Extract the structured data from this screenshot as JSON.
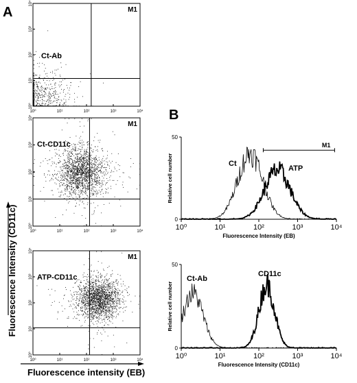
{
  "chart_data": [
    {
      "id": "scatter_ct_ab",
      "type": "scatter",
      "panel": "A",
      "title": "Ct-Ab",
      "gate_label": "M1",
      "x_ticks": [
        "10⁰",
        "10¹",
        "10²",
        "10³",
        "10⁴"
      ],
      "y_ticks": [
        "10⁰",
        "10¹",
        "10²",
        "10³",
        "10⁴"
      ],
      "x_scale": "log",
      "y_scale": "log",
      "xlim": [
        1,
        10000
      ],
      "ylim": [
        1,
        10000
      ],
      "quadrant_x": 150,
      "quadrant_y": 12,
      "density_center": [
        1.6,
        2.0
      ],
      "density_spread": 0.55,
      "density_count": 700,
      "grid": false
    },
    {
      "id": "scatter_ct_cd11c",
      "type": "scatter",
      "panel": "A",
      "title": "Ct-CD11c",
      "gate_label": "M1",
      "x_ticks": [
        "10⁰",
        "10¹",
        "10²",
        "10³",
        "10⁴"
      ],
      "y_ticks": [
        "10⁰",
        "10¹",
        "10²",
        "10³",
        "10⁴"
      ],
      "x_scale": "log",
      "y_scale": "log",
      "xlim": [
        1,
        10000
      ],
      "ylim": [
        1,
        10000
      ],
      "quadrant_x": 130,
      "quadrant_y": 10,
      "density_center": [
        60,
        100
      ],
      "density_spread": 0.45,
      "density_count": 1800,
      "grid": false
    },
    {
      "id": "scatter_atp_cd11c",
      "type": "scatter",
      "panel": "A",
      "title": "ATP-CD11c",
      "gate_label": "M1",
      "x_ticks": [
        "10⁰",
        "10¹",
        "10²",
        "10³",
        "10⁴"
      ],
      "y_ticks": [
        "10⁰",
        "10¹",
        "10²",
        "10³",
        "10⁴"
      ],
      "x_scale": "log",
      "y_scale": "log",
      "xlim": [
        1,
        10000
      ],
      "ylim": [
        1,
        10000
      ],
      "quadrant_x": 130,
      "quadrant_y": 11,
      "density_center": [
        280,
        140
      ],
      "density_spread": 0.38,
      "density_count": 1900,
      "grid": false
    },
    {
      "id": "histogram_eb",
      "type": "line",
      "panel": "B",
      "xlabel": "Fluorescence Intensity (EB)",
      "ylabel": "Relative cell number",
      "x_scale": "log",
      "xlim": [
        1,
        10000
      ],
      "ylim": [
        0,
        50
      ],
      "x_ticks": [
        "10⁰",
        "10¹",
        "10²",
        "10³",
        "10⁴"
      ],
      "y_ticks": [
        "0",
        "50"
      ],
      "gate": {
        "label": "M1",
        "from": 130,
        "to": 9000,
        "level": 42
      },
      "series": [
        {
          "name": "Ct",
          "peak_x": 60,
          "peak_y": 40,
          "width": 0.32,
          "style": "thin"
        },
        {
          "name": "ATP",
          "peak_x": 300,
          "peak_y": 30,
          "width": 0.33,
          "style": "thick"
        }
      ]
    },
    {
      "id": "histogram_cd11c",
      "type": "line",
      "panel": "B",
      "xlabel": "Fluorescence Intensity (CD11c)",
      "ylabel": "Relative cell number",
      "x_scale": "log",
      "xlim": [
        1,
        10000
      ],
      "ylim": [
        0,
        50
      ],
      "x_ticks": [
        "10⁰",
        "10¹",
        "10²",
        "10³",
        "10⁴"
      ],
      "y_ticks": [
        "0",
        "50"
      ],
      "series": [
        {
          "name": "Ct-Ab",
          "peak_x": 2,
          "peak_y": 33,
          "width": 0.26,
          "style": "thin"
        },
        {
          "name": "CD11c",
          "peak_x": 160,
          "peak_y": 38,
          "width": 0.2,
          "style": "thick"
        }
      ]
    }
  ],
  "panel_letters": {
    "a": "A",
    "b": "B"
  },
  "shared_axes": {
    "scatter_ylabel": "Fluorescence Intensity (CD11c)",
    "scatter_xlabel": "Fluorescence intensity (EB)"
  }
}
